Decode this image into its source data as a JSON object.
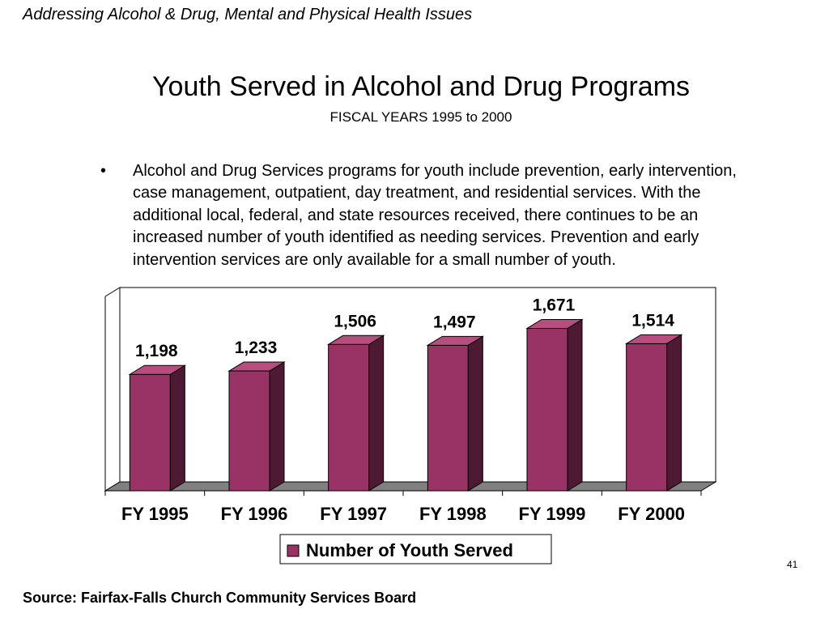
{
  "header_note": "Addressing Alcohol & Drug, Mental and Physical Health Issues",
  "title": "Youth Served in Alcohol and Drug Programs",
  "subtitle": "FISCAL YEARS 1995 to 2000",
  "bullet": {
    "marker": "•",
    "text": "Alcohol and Drug Services programs for youth include prevention, early intervention, case management, outpatient, day treatment, and residential services.  With the additional local, federal, and state resources received, there continues to be an increased number of youth identified as needing services.  Prevention and early intervention services are only available for a small number of youth."
  },
  "page_number": "41",
  "source": "Source:  Fairfax-Falls Church Community Services Board",
  "chart_data": {
    "type": "bar",
    "style": "3d",
    "categories": [
      "FY 1995",
      "FY 1996",
      "FY 1997",
      "FY 1998",
      "FY 1999",
      "FY 2000"
    ],
    "series": [
      {
        "name": "Number of Youth Served",
        "values": [
          1198,
          1233,
          1506,
          1497,
          1671,
          1514
        ],
        "labels": [
          "1,198",
          "1,233",
          "1,506",
          "1,497",
          "1,671",
          "1,514"
        ],
        "color": "#993366",
        "side_color": "#4D1933"
      }
    ],
    "ylim": [
      0,
      2000
    ],
    "grid": false,
    "legend_position": "bottom"
  }
}
